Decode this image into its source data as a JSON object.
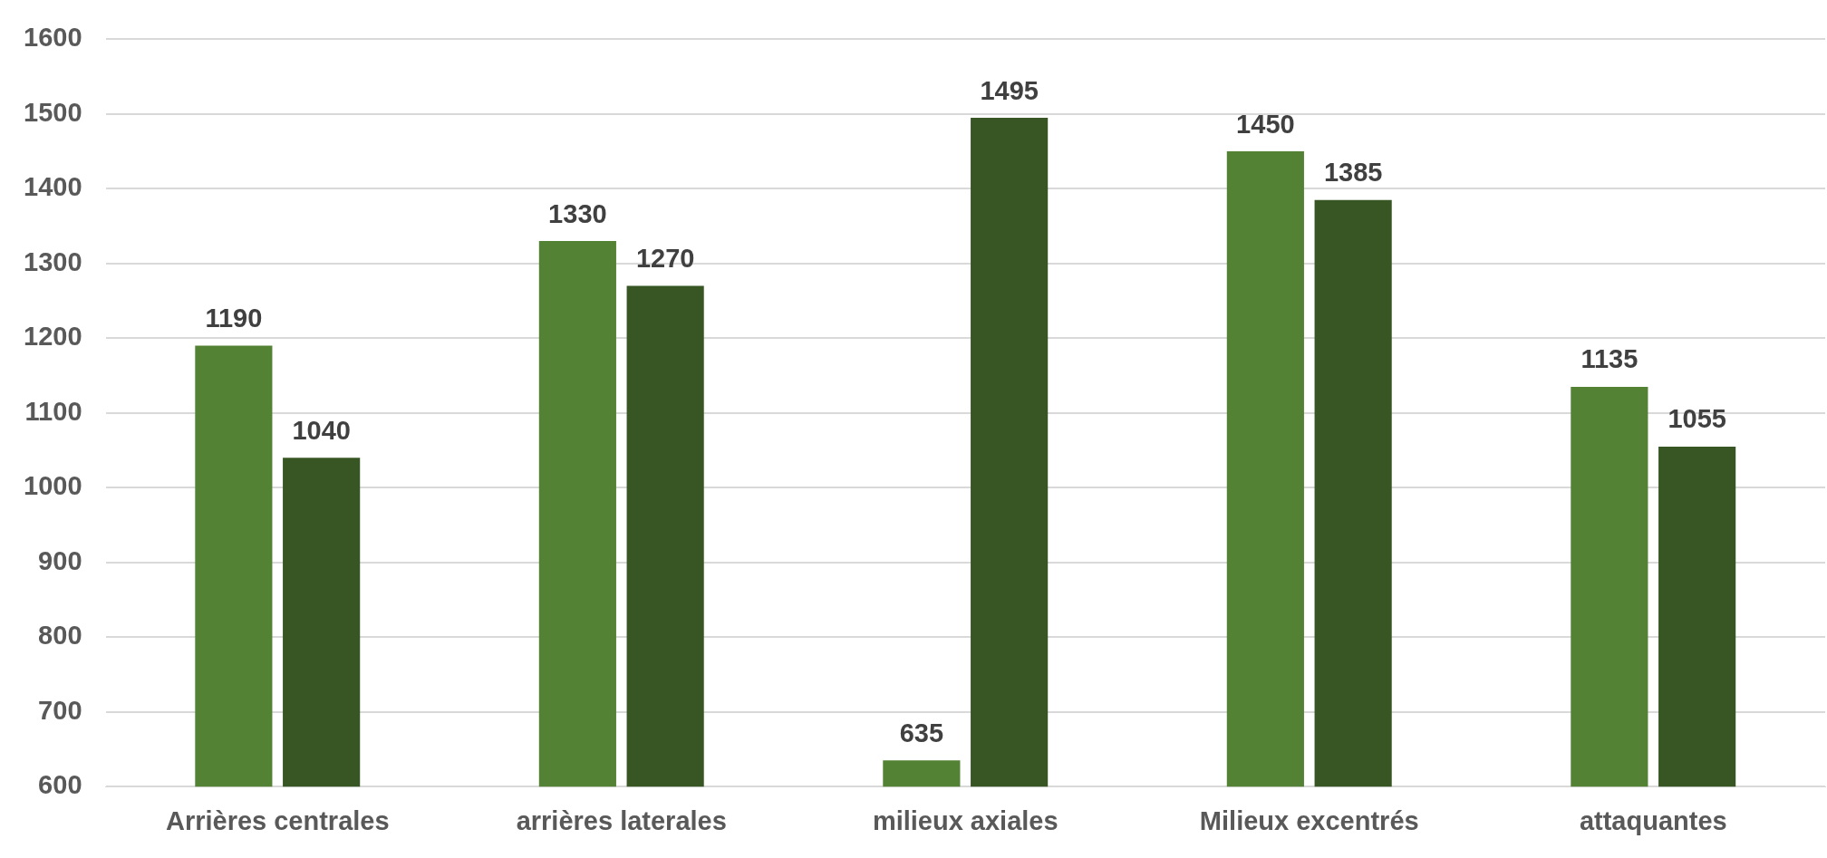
{
  "chart_data": {
    "type": "bar",
    "categories": [
      "Arrières centrales",
      "arrières laterales",
      "milieux axiales",
      "Milieux excentrés",
      "attaquantes"
    ],
    "series": [
      {
        "color": "#548235",
        "values": [
          1190,
          1330,
          635,
          1450,
          1135
        ]
      },
      {
        "color": "#375623",
        "values": [
          1040,
          1270,
          1495,
          1385,
          1055
        ]
      }
    ],
    "ylim": [
      600,
      1600
    ],
    "yticks": [
      600,
      700,
      800,
      900,
      1000,
      1100,
      1200,
      1300,
      1400,
      1500,
      1600
    ],
    "grid": "y",
    "data_labels": true
  }
}
